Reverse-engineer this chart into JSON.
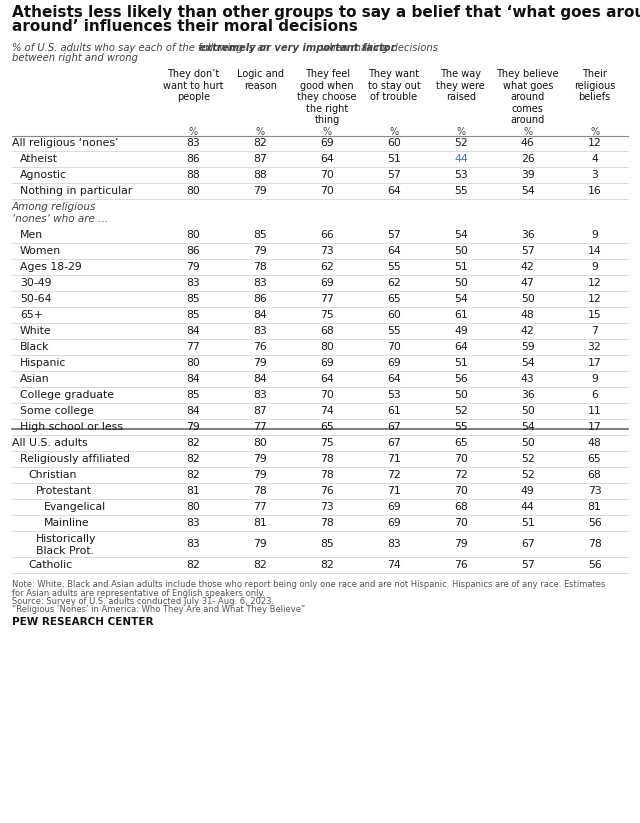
{
  "title": "Atheists less likely than other groups to say a belief that ‘what goes around comes\naround’ influences their moral decisions",
  "col_headers": [
    "They don’t\nwant to hurt\npeople",
    "Logic and\nreason",
    "They feel\ngood when\nthey choose\nthe right\nthing",
    "They want\nto stay out\nof trouble",
    "The way\nthey were\nraised",
    "They believe\nwhat goes\naround\ncomes\naround",
    "Their\nreligious\nbeliefs"
  ],
  "rows": [
    {
      "label": "All religious ‘nones’",
      "indent": 0,
      "values": [
        83,
        82,
        69,
        60,
        52,
        46,
        12
      ],
      "section_header": false,
      "divider_above": false,
      "italic": false,
      "highlights": []
    },
    {
      "label": "Atheist",
      "indent": 1,
      "values": [
        86,
        87,
        64,
        51,
        44,
        26,
        4
      ],
      "section_header": false,
      "divider_above": false,
      "italic": false,
      "highlights": [
        4
      ]
    },
    {
      "label": "Agnostic",
      "indent": 1,
      "values": [
        88,
        88,
        70,
        57,
        53,
        39,
        3
      ],
      "section_header": false,
      "divider_above": false,
      "italic": false,
      "highlights": []
    },
    {
      "label": "Nothing in particular",
      "indent": 1,
      "values": [
        80,
        79,
        70,
        64,
        55,
        54,
        16
      ],
      "section_header": false,
      "divider_above": false,
      "italic": false,
      "highlights": []
    },
    {
      "label": "Among religious\n‘nones’ who are …",
      "indent": 0,
      "values": null,
      "section_header": true,
      "divider_above": false,
      "italic": true,
      "highlights": []
    },
    {
      "label": "Men",
      "indent": 1,
      "values": [
        80,
        85,
        66,
        57,
        54,
        36,
        9
      ],
      "section_header": false,
      "divider_above": false,
      "italic": false,
      "highlights": []
    },
    {
      "label": "Women",
      "indent": 1,
      "values": [
        86,
        79,
        73,
        64,
        50,
        57,
        14
      ],
      "section_header": false,
      "divider_above": false,
      "italic": false,
      "highlights": []
    },
    {
      "label": "Ages 18-29",
      "indent": 1,
      "values": [
        79,
        78,
        62,
        55,
        51,
        42,
        9
      ],
      "section_header": false,
      "divider_above": false,
      "italic": false,
      "highlights": []
    },
    {
      "label": "30-49",
      "indent": 1,
      "values": [
        83,
        83,
        69,
        62,
        50,
        47,
        12
      ],
      "section_header": false,
      "divider_above": false,
      "italic": false,
      "highlights": []
    },
    {
      "label": "50-64",
      "indent": 1,
      "values": [
        85,
        86,
        77,
        65,
        54,
        50,
        12
      ],
      "section_header": false,
      "divider_above": false,
      "italic": false,
      "highlights": []
    },
    {
      "label": "65+",
      "indent": 1,
      "values": [
        85,
        84,
        75,
        60,
        61,
        48,
        15
      ],
      "section_header": false,
      "divider_above": false,
      "italic": false,
      "highlights": []
    },
    {
      "label": "White",
      "indent": 1,
      "values": [
        84,
        83,
        68,
        55,
        49,
        42,
        7
      ],
      "section_header": false,
      "divider_above": false,
      "italic": false,
      "highlights": []
    },
    {
      "label": "Black",
      "indent": 1,
      "values": [
        77,
        76,
        80,
        70,
        64,
        59,
        32
      ],
      "section_header": false,
      "divider_above": false,
      "italic": false,
      "highlights": []
    },
    {
      "label": "Hispanic",
      "indent": 1,
      "values": [
        80,
        79,
        69,
        69,
        51,
        54,
        17
      ],
      "section_header": false,
      "divider_above": false,
      "italic": false,
      "highlights": []
    },
    {
      "label": "Asian",
      "indent": 1,
      "values": [
        84,
        84,
        64,
        64,
        56,
        43,
        9
      ],
      "section_header": false,
      "divider_above": false,
      "italic": false,
      "highlights": []
    },
    {
      "label": "College graduate",
      "indent": 1,
      "values": [
        85,
        83,
        70,
        53,
        50,
        36,
        6
      ],
      "section_header": false,
      "divider_above": false,
      "italic": false,
      "highlights": []
    },
    {
      "label": "Some college",
      "indent": 1,
      "values": [
        84,
        87,
        74,
        61,
        52,
        50,
        11
      ],
      "section_header": false,
      "divider_above": false,
      "italic": false,
      "highlights": []
    },
    {
      "label": "High school or less",
      "indent": 1,
      "values": [
        79,
        77,
        65,
        67,
        55,
        54,
        17
      ],
      "section_header": false,
      "divider_above": false,
      "italic": false,
      "highlights": []
    },
    {
      "label": "All U.S. adults",
      "indent": 0,
      "values": [
        82,
        80,
        75,
        67,
        65,
        50,
        48
      ],
      "section_header": false,
      "divider_above": true,
      "italic": false,
      "highlights": []
    },
    {
      "label": "Religiously affiliated",
      "indent": 1,
      "values": [
        82,
        79,
        78,
        71,
        70,
        52,
        65
      ],
      "section_header": false,
      "divider_above": false,
      "italic": false,
      "highlights": []
    },
    {
      "label": "Christian",
      "indent": 2,
      "values": [
        82,
        79,
        78,
        72,
        72,
        52,
        68
      ],
      "section_header": false,
      "divider_above": false,
      "italic": false,
      "highlights": []
    },
    {
      "label": "Protestant",
      "indent": 3,
      "values": [
        81,
        78,
        76,
        71,
        70,
        49,
        73
      ],
      "section_header": false,
      "divider_above": false,
      "italic": false,
      "highlights": []
    },
    {
      "label": "Evangelical",
      "indent": 4,
      "values": [
        80,
        77,
        73,
        69,
        68,
        44,
        81
      ],
      "section_header": false,
      "divider_above": false,
      "italic": false,
      "highlights": []
    },
    {
      "label": "Mainline",
      "indent": 4,
      "values": [
        83,
        81,
        78,
        69,
        70,
        51,
        56
      ],
      "section_header": false,
      "divider_above": false,
      "italic": false,
      "highlights": []
    },
    {
      "label": "Historically\nBlack Prot.",
      "indent": 3,
      "values": [
        83,
        79,
        85,
        83,
        79,
        67,
        78
      ],
      "section_header": false,
      "divider_above": false,
      "italic": false,
      "highlights": [],
      "double_row": true
    },
    {
      "label": "Catholic",
      "indent": 2,
      "values": [
        82,
        82,
        82,
        74,
        76,
        57,
        56
      ],
      "section_header": false,
      "divider_above": false,
      "italic": false,
      "highlights": []
    }
  ],
  "highlight_color": "#3a7abf",
  "normal_color": "#1a1a1a",
  "section_header_color": "#444444",
  "footer_lines": [
    "Note: White, Black and Asian adults include those who report being only one race and are not Hispanic. Hispanics are of any race. Estimates",
    "for Asian adults are representative of English speakers only.",
    "Source: Survey of U.S. adults conducted July 31- Aug. 6, 2023.",
    "“Religious ‘Nones’ in America: Who They Are and What They Believe”"
  ],
  "footer_logo": "PEW RESEARCH CENTER"
}
